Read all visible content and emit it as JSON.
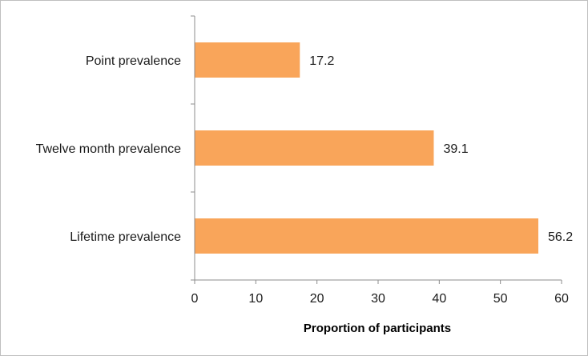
{
  "chart_data": {
    "type": "bar",
    "orientation": "horizontal",
    "categories": [
      "Point prevalence",
      "Twelve month prevalence",
      "Lifetime prevalence"
    ],
    "values": [
      17.2,
      39.1,
      56.2
    ],
    "data_labels": [
      "17.2",
      "39.1",
      "56.2"
    ],
    "xlabel": "Proportion of participants",
    "ylabel": "",
    "title": "",
    "xlim": [
      0,
      60
    ],
    "xticks": [
      0,
      10,
      20,
      30,
      40,
      50,
      60
    ],
    "grid": false,
    "legend": "none",
    "bar_color": "#f9a55a"
  }
}
